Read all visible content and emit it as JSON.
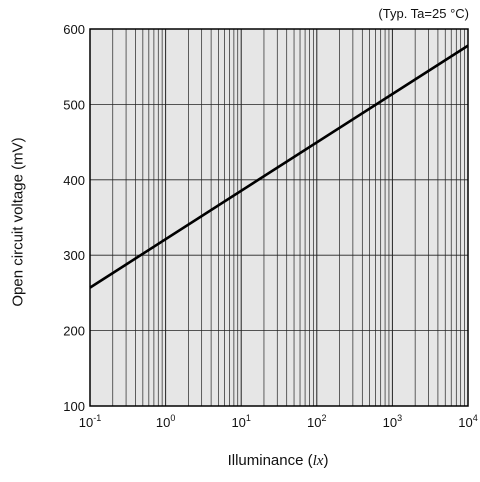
{
  "chart_data": {
    "type": "line",
    "note": "(Typ. Ta=25 °C)",
    "xlabel": "Illuminance",
    "xlabel_unit": "lx",
    "ylabel": "Open circuit voltage (mV)",
    "x_scale": "log",
    "xlim": [
      0.1,
      10000
    ],
    "ylim": [
      100,
      600
    ],
    "x_ticks": [
      {
        "base": "10",
        "exp": "-1"
      },
      {
        "base": "10",
        "exp": "0"
      },
      {
        "base": "10",
        "exp": "1"
      },
      {
        "base": "10",
        "exp": "2"
      },
      {
        "base": "10",
        "exp": "3"
      },
      {
        "base": "10",
        "exp": "4"
      }
    ],
    "y_ticks": [
      "100",
      "200",
      "300",
      "400",
      "500",
      "600"
    ],
    "grid": true,
    "series": [
      {
        "x": [
          0.1,
          10000
        ],
        "y": [
          257,
          578
        ],
        "color": "#000000"
      }
    ],
    "colors": {
      "plot_bg": "#e6e6e6",
      "grid": "#222222",
      "line": "#000000"
    }
  }
}
